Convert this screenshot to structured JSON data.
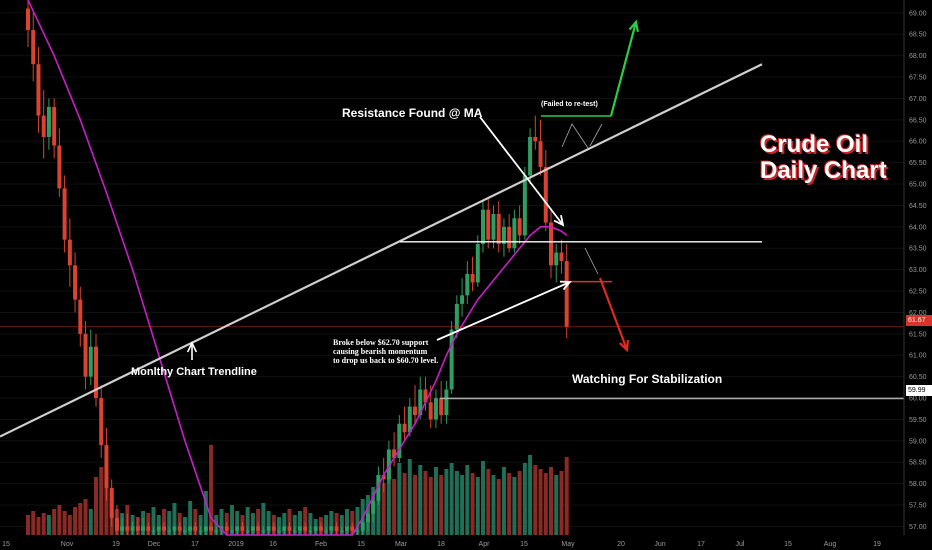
{
  "chart_data": {
    "type": "candlestick",
    "title": "Crude Oil",
    "subtitle": "Daily Chart",
    "y_ticks": [
      "57.00",
      "57.50",
      "58.00",
      "58.50",
      "59.00",
      "59.50",
      "60.00",
      "60.50",
      "61.00",
      "61.50",
      "62.00",
      "62.50",
      "63.00",
      "63.50",
      "64.00",
      "64.50",
      "65.00",
      "65.50",
      "66.00",
      "66.50",
      "67.00",
      "67.50",
      "68.00",
      "68.50",
      "69.00"
    ],
    "x_ticks": [
      "15",
      "Nov",
      "19",
      "Dec",
      "17",
      "2019",
      "16",
      "Feb",
      "15",
      "Mar",
      "18",
      "Apr",
      "15",
      "May",
      "20",
      "Jun",
      "17",
      "Jul",
      "15",
      "Aug",
      "19"
    ],
    "ylim": [
      56.8,
      69.3
    ],
    "price_labels": {
      "current": "61.67",
      "level": "59.99"
    },
    "levels": {
      "current": 61.67,
      "stabilization": 59.99,
      "resistance": 63.65,
      "support": 62.72,
      "trendline_start": 59.1,
      "trendline_end": 67.8
    },
    "annotations": {
      "resistance": "Resistance Found @ MA",
      "failed": "(Failed to re-test)",
      "trendline": "Monlthy Chart Trendline",
      "watching": "Watching For Stabilization",
      "broke_lines": [
        "Broke below $62.70 support",
        "causing bearish momentum",
        "to drop us back to $60.70 level."
      ]
    },
    "series": [
      {
        "name": "WTI",
        "ohlc": [
          [
            69.1,
            69.3,
            68.2,
            68.6
          ],
          [
            68.6,
            69.0,
            67.4,
            67.8
          ],
          [
            67.8,
            68.2,
            66.2,
            66.6
          ],
          [
            66.6,
            67.2,
            65.6,
            66.1
          ],
          [
            66.1,
            67.0,
            65.8,
            66.8
          ],
          [
            66.8,
            67.0,
            65.6,
            65.9
          ],
          [
            65.9,
            66.3,
            64.7,
            64.9
          ],
          [
            64.9,
            65.2,
            63.4,
            63.7
          ],
          [
            63.7,
            64.2,
            62.6,
            63.1
          ],
          [
            63.1,
            63.4,
            62.0,
            62.3
          ],
          [
            62.3,
            62.6,
            61.2,
            61.5
          ],
          [
            61.5,
            61.8,
            60.2,
            60.5
          ],
          [
            60.5,
            61.6,
            60.3,
            61.2
          ],
          [
            61.2,
            61.5,
            59.8,
            60.0
          ],
          [
            60.0,
            60.3,
            58.6,
            58.9
          ],
          [
            58.9,
            59.3,
            57.6,
            57.9
          ],
          [
            57.9,
            58.1,
            57.0,
            57.2
          ],
          [
            57.2,
            57.5,
            56.8,
            56.9
          ],
          [
            56.9,
            57.2,
            56.8,
            57.0
          ],
          [
            57.0,
            57.3,
            56.8,
            56.9
          ],
          [
            56.9,
            57.1,
            56.8,
            57.0
          ],
          [
            57.0,
            57.2,
            56.8,
            56.9
          ],
          [
            56.9,
            57.2,
            56.8,
            57.0
          ],
          [
            57.0,
            57.1,
            56.8,
            56.9
          ],
          [
            56.9,
            57.0,
            56.8,
            56.9
          ],
          [
            56.9,
            57.0,
            56.8,
            57.0
          ],
          [
            57.0,
            57.1,
            56.8,
            56.9
          ],
          [
            56.9,
            57.0,
            56.8,
            56.9
          ],
          [
            56.9,
            57.0,
            56.8,
            57.0
          ],
          [
            57.0,
            57.1,
            56.8,
            56.9
          ],
          [
            56.9,
            57.0,
            56.8,
            56.9
          ],
          [
            56.9,
            57.0,
            56.8,
            57.0
          ],
          [
            57.0,
            57.1,
            56.8,
            56.9
          ],
          [
            56.9,
            57.0,
            56.8,
            56.9
          ],
          [
            56.9,
            57.0,
            56.8,
            57.0
          ],
          [
            57.0,
            57.1,
            56.8,
            56.9
          ],
          [
            56.9,
            57.0,
            56.8,
            56.9
          ],
          [
            56.9,
            57.0,
            56.8,
            57.0
          ],
          [
            57.0,
            57.1,
            56.8,
            56.9
          ],
          [
            56.9,
            57.0,
            56.8,
            56.9
          ],
          [
            56.9,
            57.0,
            56.8,
            57.0
          ],
          [
            57.0,
            57.1,
            56.8,
            56.9
          ],
          [
            56.9,
            57.0,
            56.8,
            56.9
          ],
          [
            56.9,
            57.0,
            56.8,
            57.0
          ],
          [
            57.0,
            57.1,
            56.8,
            56.9
          ],
          [
            56.9,
            57.0,
            56.8,
            56.9
          ],
          [
            56.9,
            57.0,
            56.8,
            57.0
          ],
          [
            57.0,
            57.1,
            56.8,
            56.9
          ],
          [
            56.9,
            57.0,
            56.8,
            56.9
          ],
          [
            56.9,
            57.0,
            56.8,
            57.0
          ],
          [
            57.0,
            57.1,
            56.8,
            56.9
          ],
          [
            56.9,
            57.0,
            56.8,
            56.9
          ],
          [
            56.9,
            57.0,
            56.8,
            57.0
          ],
          [
            57.0,
            57.1,
            56.8,
            56.9
          ],
          [
            56.9,
            57.0,
            56.8,
            56.9
          ],
          [
            56.9,
            57.0,
            56.8,
            57.0
          ],
          [
            57.0,
            57.1,
            56.8,
            56.9
          ],
          [
            56.9,
            57.0,
            56.8,
            56.9
          ],
          [
            56.9,
            57.0,
            56.8,
            57.0
          ],
          [
            57.0,
            57.1,
            56.8,
            56.9
          ],
          [
            56.9,
            57.0,
            56.8,
            56.9
          ],
          [
            56.9,
            57.0,
            56.8,
            57.0
          ],
          [
            57.0,
            57.1,
            56.8,
            56.9
          ],
          [
            56.9,
            57.0,
            56.8,
            56.9
          ],
          [
            56.9,
            57.2,
            56.8,
            57.1
          ],
          [
            57.1,
            57.4,
            56.9,
            57.3
          ],
          [
            57.3,
            57.8,
            57.1,
            57.6
          ],
          [
            57.6,
            58.4,
            57.5,
            58.2
          ],
          [
            58.2,
            58.6,
            57.8,
            58.1
          ],
          [
            58.1,
            59.0,
            58.0,
            58.8
          ],
          [
            58.8,
            59.2,
            58.4,
            58.6
          ],
          [
            58.6,
            59.6,
            58.5,
            59.4
          ],
          [
            59.4,
            59.8,
            59.0,
            59.2
          ],
          [
            59.2,
            60.0,
            59.1,
            59.8
          ],
          [
            59.8,
            60.3,
            59.4,
            59.6
          ],
          [
            59.6,
            60.5,
            59.5,
            60.2
          ],
          [
            60.2,
            60.5,
            59.7,
            59.9
          ],
          [
            59.9,
            60.3,
            59.3,
            59.5
          ],
          [
            59.5,
            60.2,
            59.3,
            60.0
          ],
          [
            60.0,
            60.4,
            59.4,
            59.6
          ],
          [
            59.6,
            60.4,
            59.4,
            60.2
          ],
          [
            60.2,
            61.8,
            60.1,
            61.6
          ],
          [
            61.6,
            62.4,
            61.4,
            62.2
          ],
          [
            62.2,
            62.8,
            61.9,
            62.4
          ],
          [
            62.4,
            63.2,
            62.2,
            62.9
          ],
          [
            62.9,
            63.3,
            62.5,
            62.7
          ],
          [
            62.7,
            63.8,
            62.6,
            63.6
          ],
          [
            63.6,
            64.6,
            63.4,
            64.4
          ],
          [
            64.4,
            64.7,
            63.5,
            63.7
          ],
          [
            63.7,
            64.5,
            63.5,
            64.3
          ],
          [
            64.3,
            64.6,
            63.4,
            63.6
          ],
          [
            63.6,
            64.2,
            63.3,
            64.0
          ],
          [
            64.0,
            64.3,
            63.4,
            63.5
          ],
          [
            63.5,
            64.4,
            63.4,
            64.2
          ],
          [
            64.2,
            64.5,
            63.6,
            63.8
          ],
          [
            63.8,
            65.4,
            63.7,
            65.2
          ],
          [
            65.2,
            66.3,
            65.0,
            66.1
          ],
          [
            66.1,
            66.6,
            65.8,
            66.0
          ],
          [
            66.0,
            66.5,
            65.2,
            65.4
          ],
          [
            65.4,
            65.8,
            63.9,
            64.1
          ],
          [
            64.1,
            64.4,
            62.8,
            63.1
          ],
          [
            63.1,
            63.6,
            62.7,
            63.4
          ],
          [
            63.4,
            63.7,
            62.9,
            63.2
          ],
          [
            63.2,
            63.6,
            61.4,
            61.67
          ]
        ],
        "volume": [
          1.0,
          1.2,
          0.9,
          1.1,
          1.0,
          1.3,
          1.5,
          1.2,
          1.0,
          1.4,
          1.6,
          1.8,
          1.3,
          2.9,
          3.4,
          2.8,
          2.2,
          1.3,
          1.1,
          1.5,
          1.0,
          0.9,
          1.2,
          1.1,
          1.4,
          1.0,
          1.3,
          1.2,
          1.6,
          1.1,
          0.9,
          1.7,
          1.3,
          1.0,
          2.2,
          4.5,
          1.0,
          1.3,
          1.1,
          1.5,
          1.2,
          1.0,
          1.4,
          1.1,
          1.3,
          1.6,
          1.2,
          1.0,
          0.9,
          1.1,
          1.3,
          1.0,
          1.2,
          1.4,
          1.1,
          0.8,
          0.9,
          1.0,
          1.2,
          1.1,
          1.0,
          1.3,
          1.2,
          1.4,
          1.8,
          2.0,
          2.4,
          3.0,
          2.6,
          3.4,
          2.8,
          3.6,
          3.1,
          3.8,
          3.0,
          3.5,
          3.2,
          2.9,
          3.4,
          3.0,
          3.3,
          3.6,
          3.2,
          3.0,
          3.5,
          3.1,
          2.9,
          3.7,
          3.3,
          3.0,
          2.8,
          3.4,
          3.1,
          2.9,
          3.2,
          3.6,
          4.0,
          3.5,
          3.3,
          3.1,
          3.4,
          3.0,
          3.2,
          3.9
        ],
        "moving_average": [
          [
            0,
            69.3
          ],
          [
            5,
            68.0
          ],
          [
            10,
            66.5
          ],
          [
            15,
            64.8
          ],
          [
            20,
            63.0
          ],
          [
            25,
            61.0
          ],
          [
            30,
            59.0
          ],
          [
            35,
            57.2
          ],
          [
            38,
            56.8
          ],
          [
            62,
            56.8
          ],
          [
            64,
            57.2
          ],
          [
            66,
            57.7
          ],
          [
            68,
            58.2
          ],
          [
            70,
            58.6
          ],
          [
            72,
            59.0
          ],
          [
            74,
            59.4
          ],
          [
            76,
            59.9
          ],
          [
            78,
            60.4
          ],
          [
            80,
            61.0
          ],
          [
            82,
            61.5
          ],
          [
            84,
            61.9
          ],
          [
            86,
            62.3
          ],
          [
            88,
            62.6
          ],
          [
            90,
            62.9
          ],
          [
            92,
            63.2
          ],
          [
            94,
            63.5
          ],
          [
            96,
            63.8
          ],
          [
            98,
            64.0
          ],
          [
            100,
            64.0
          ],
          [
            102,
            63.9
          ],
          [
            103,
            63.8
          ]
        ]
      }
    ]
  }
}
